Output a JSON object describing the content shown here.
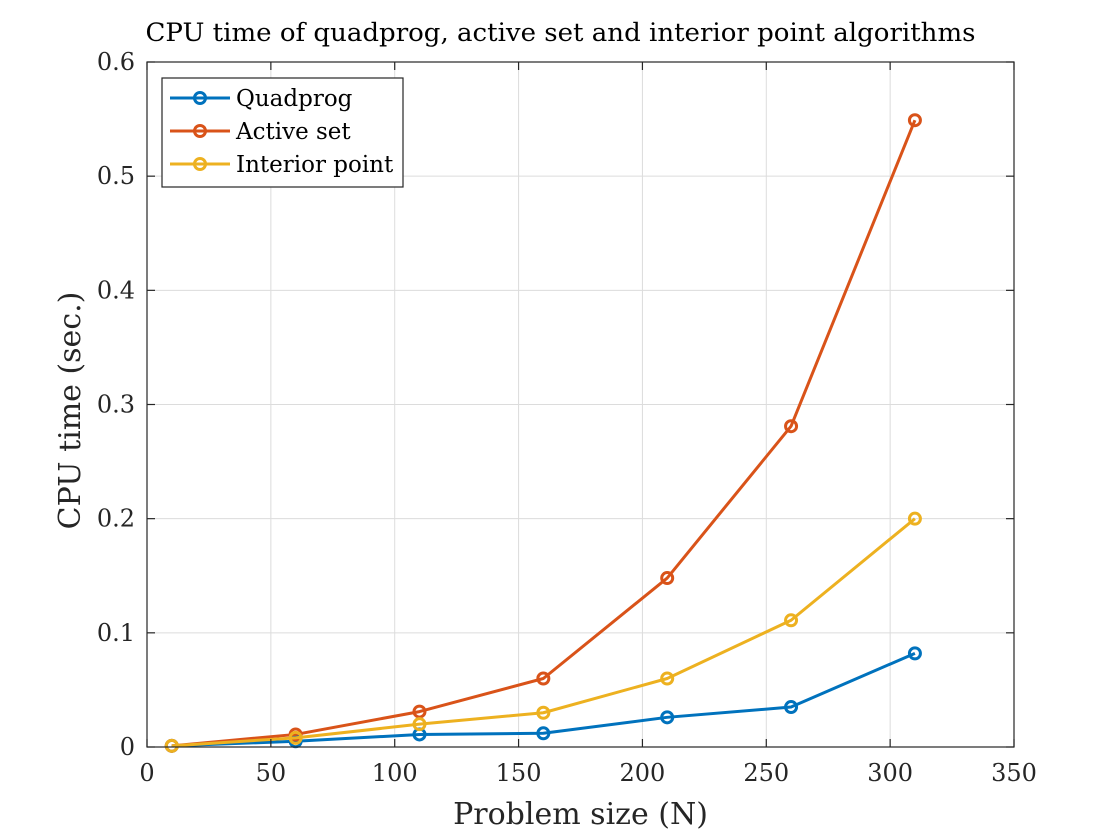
{
  "chart_data": {
    "type": "line",
    "title": "CPU time of quadprog, active set and interior point algorithms",
    "xlabel": "Problem size (N)",
    "ylabel": "CPU time (sec.)",
    "xlim": [
      0,
      350
    ],
    "ylim": [
      0,
      0.6
    ],
    "xticks": [
      "0",
      "50",
      "100",
      "150",
      "200",
      "250",
      "300",
      "350"
    ],
    "yticks": [
      "0",
      "0.1",
      "0.2",
      "0.3",
      "0.4",
      "0.5",
      "0.6"
    ],
    "grid": true,
    "legend_position": "top-left",
    "x": [
      10,
      60,
      110,
      160,
      210,
      260,
      310
    ],
    "series": [
      {
        "name": "Quadprog",
        "color": "#0072BD",
        "values": [
          0.001,
          0.005,
          0.011,
          0.012,
          0.026,
          0.035,
          0.082
        ]
      },
      {
        "name": "Active set",
        "color": "#D95319",
        "values": [
          0.001,
          0.011,
          0.031,
          0.06,
          0.148,
          0.281,
          0.549
        ]
      },
      {
        "name": "Interior point",
        "color": "#EDB120",
        "values": [
          0.001,
          0.008,
          0.02,
          0.03,
          0.06,
          0.111,
          0.2
        ]
      }
    ]
  }
}
